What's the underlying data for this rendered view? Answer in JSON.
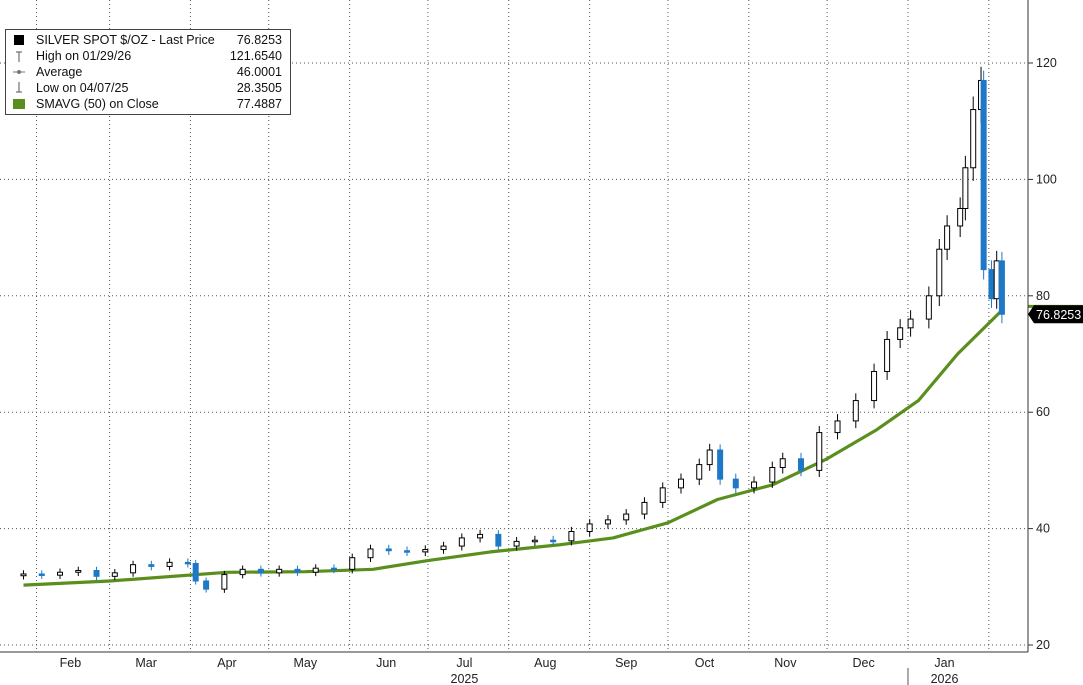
{
  "chart_data": {
    "type": "candlestick",
    "title": "",
    "legend": {
      "placement": "top-left",
      "entries": [
        {
          "label": "SILVER SPOT $/OZ - Last Price",
          "value": "76.8253",
          "symbol": "black-square"
        },
        {
          "label": "High on 01/29/26",
          "value": "121.6540",
          "symbol": "high-marker"
        },
        {
          "label": "Average",
          "value": "46.0001",
          "symbol": "average-marker"
        },
        {
          "label": "Low on 04/07/25",
          "value": "28.3505",
          "symbol": "low-marker"
        },
        {
          "label": "SMAVG (50)  on Close",
          "value": "77.4887",
          "symbol": "green-square"
        }
      ]
    },
    "last_price_tag": "76.8253",
    "y_axis": {
      "position": "right",
      "ylim": [
        19,
        130
      ],
      "ticks": [
        20,
        40,
        60,
        80,
        100,
        120
      ]
    },
    "x_axis": {
      "months": [
        "Feb",
        "Mar",
        "Apr",
        "May",
        "Jun",
        "Jul",
        "Aug",
        "Sep",
        "Oct",
        "Nov",
        "Dec",
        "Jan"
      ],
      "years": [
        "2025",
        "2026"
      ]
    },
    "grid": true,
    "colors": {
      "candle": "#000000",
      "down_candle": "#1e78c8",
      "sma": "#5a8f1e",
      "grid": "#555555"
    },
    "series": [
      {
        "name": "SILVER SPOT $/OZ",
        "kind": "candles",
        "points": [
          [
            "2025-01-27",
            32.2
          ],
          [
            "2025-02-03",
            32.0
          ],
          [
            "2025-02-10",
            32.5
          ],
          [
            "2025-02-17",
            32.8
          ],
          [
            "2025-02-24",
            31.8
          ],
          [
            "2025-03-03",
            32.4
          ],
          [
            "2025-03-10",
            33.8
          ],
          [
            "2025-03-17",
            33.5
          ],
          [
            "2025-03-24",
            34.2
          ],
          [
            "2025-03-31",
            34.0
          ],
          [
            "2025-04-03",
            31.0
          ],
          [
            "2025-04-07",
            29.6
          ],
          [
            "2025-04-14",
            32.1
          ],
          [
            "2025-04-21",
            33.0
          ],
          [
            "2025-04-28",
            32.4
          ],
          [
            "2025-05-05",
            33.0
          ],
          [
            "2025-05-12",
            32.5
          ],
          [
            "2025-05-19",
            33.2
          ],
          [
            "2025-05-26",
            33.0
          ],
          [
            "2025-06-02",
            35.0
          ],
          [
            "2025-06-09",
            36.5
          ],
          [
            "2025-06-16",
            36.2
          ],
          [
            "2025-06-23",
            36.0
          ],
          [
            "2025-06-30",
            36.4
          ],
          [
            "2025-07-07",
            37.0
          ],
          [
            "2025-07-14",
            38.4
          ],
          [
            "2025-07-21",
            39.0
          ],
          [
            "2025-07-28",
            37.0
          ],
          [
            "2025-08-04",
            37.8
          ],
          [
            "2025-08-11",
            38.0
          ],
          [
            "2025-08-18",
            37.9
          ],
          [
            "2025-08-25",
            39.5
          ],
          [
            "2025-09-01",
            40.8
          ],
          [
            "2025-09-08",
            41.5
          ],
          [
            "2025-09-15",
            42.5
          ],
          [
            "2025-09-22",
            44.5
          ],
          [
            "2025-09-29",
            47.0
          ],
          [
            "2025-10-06",
            48.5
          ],
          [
            "2025-10-13",
            51.0
          ],
          [
            "2025-10-17",
            53.5
          ],
          [
            "2025-10-21",
            48.5
          ],
          [
            "2025-10-27",
            47.0
          ],
          [
            "2025-11-03",
            48.0
          ],
          [
            "2025-11-10",
            50.5
          ],
          [
            "2025-11-14",
            52.0
          ],
          [
            "2025-11-21",
            50.0
          ],
          [
            "2025-11-28",
            56.5
          ],
          [
            "2025-12-05",
            58.5
          ],
          [
            "2025-12-12",
            62.0
          ],
          [
            "2025-12-19",
            67.0
          ],
          [
            "2025-12-24",
            72.5
          ],
          [
            "2025-12-29",
            74.5
          ],
          [
            "2026-01-02",
            76.0
          ],
          [
            "2026-01-09",
            80.0
          ],
          [
            "2026-01-13",
            88.0
          ],
          [
            "2026-01-16",
            92.0
          ],
          [
            "2026-01-21",
            95.0
          ],
          [
            "2026-01-23",
            102.0
          ],
          [
            "2026-01-26",
            112.0
          ],
          [
            "2026-01-29",
            117.0
          ],
          [
            "2026-01-30",
            84.5
          ],
          [
            "2026-02-02",
            79.5
          ],
          [
            "2026-02-04",
            86.0
          ],
          [
            "2026-02-06",
            76.8253
          ]
        ]
      },
      {
        "name": "SMAVG (50)  on Close",
        "kind": "line",
        "points": [
          [
            "2025-01-27",
            30.3
          ],
          [
            "2025-03-01",
            31.0
          ],
          [
            "2025-04-15",
            32.5
          ],
          [
            "2025-05-15",
            32.6
          ],
          [
            "2025-06-10",
            33.0
          ],
          [
            "2025-07-01",
            34.5
          ],
          [
            "2025-07-25",
            36.0
          ],
          [
            "2025-08-20",
            37.2
          ],
          [
            "2025-09-10",
            38.4
          ],
          [
            "2025-10-01",
            41.0
          ],
          [
            "2025-10-20",
            45.0
          ],
          [
            "2025-11-10",
            47.5
          ],
          [
            "2025-12-01",
            52.0
          ],
          [
            "2025-12-20",
            57.0
          ],
          [
            "2026-01-05",
            62.0
          ],
          [
            "2026-01-20",
            70.0
          ],
          [
            "2026-02-06",
            77.4887
          ]
        ]
      }
    ]
  }
}
